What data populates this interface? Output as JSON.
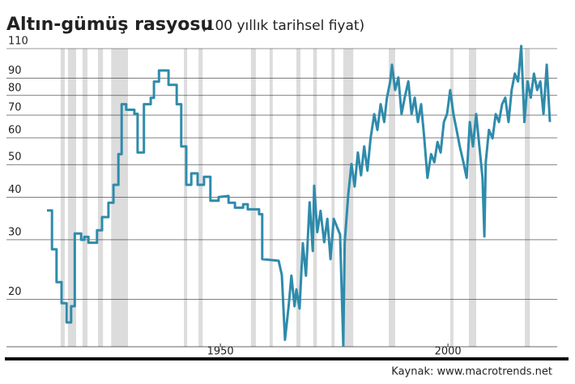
{
  "chart_data": {
    "type": "line",
    "title": "Altın-gümüş rasyosu",
    "subtitle": "(100 yıllık tarihsel fiyat)",
    "source": "Kaynak: www.macrotrends.net",
    "color": "#2f8bab",
    "band_color": "#dcdcdc",
    "yscale": "log",
    "grid": true,
    "xlim": [
      1903,
      2024
    ],
    "ylim": [
      14.5,
      110
    ],
    "xticks": [
      1950,
      2000
    ],
    "yticks": [
      20,
      30,
      40,
      50,
      60,
      70,
      80,
      90,
      110
    ],
    "shaded_ranges": [
      [
        1914.9,
        1915.8
      ],
      [
        1916.5,
        1918.3
      ],
      [
        1919.7,
        1920.8
      ],
      [
        1923.1,
        1924.2
      ],
      [
        1926.0,
        1929.7
      ],
      [
        1942.0,
        1942.7
      ],
      [
        1945.2,
        1946.1
      ],
      [
        1956.7,
        1957.8
      ],
      [
        1960.8,
        1961.5
      ],
      [
        1966.7,
        1967.6
      ],
      [
        1970.4,
        1971.2
      ],
      [
        1974.4,
        1975.1
      ],
      [
        1977.0,
        1979.2
      ],
      [
        1987.0,
        1988.4
      ],
      [
        2000.5,
        2001.2
      ],
      [
        2004.6,
        2006.2
      ],
      [
        2016.9,
        2018.0
      ]
    ],
    "x": [
      1911.9,
      1913,
      1913,
      1914,
      1914,
      1915.1,
      1915.1,
      1916.2,
      1916.2,
      1917.2,
      1917.2,
      1918,
      1918,
      1919.4,
      1919.4,
      1920.1,
      1920.1,
      1921,
      1921,
      1922.9,
      1922.9,
      1924,
      1924,
      1925.4,
      1925.4,
      1926.5,
      1926.5,
      1927.6,
      1927.6,
      1928.3,
      1928.3,
      1929.3,
      1929.3,
      1931.1,
      1931.1,
      1931.8,
      1931.8,
      1933.2,
      1933.2,
      1934.7,
      1934.7,
      1935.4,
      1935.4,
      1936.5,
      1936.5,
      1938.6,
      1938.6,
      1940.4,
      1940.4,
      1941.4,
      1941.4,
      1942.5,
      1942.5,
      1943.6,
      1943.6,
      1945,
      1945,
      1946.4,
      1946.4,
      1947.8,
      1947.8,
      1949.6,
      1949.6,
      1951.8,
      1951.8,
      1953.2,
      1953.2,
      1955,
      1955,
      1956,
      1956,
      1958.5,
      1958.5,
      1959.2,
      1959.2,
      1962.8,
      1963.5,
      1964.2,
      1965,
      1965.6,
      1966.3,
      1966.7,
      1967.4,
      1968.1,
      1968.8,
      1969.6,
      1970.3,
      1970.6,
      1971.3,
      1972,
      1972.8,
      1973.5,
      1974.2,
      1974.9,
      1975.6,
      1976.3,
      1977,
      1977.3,
      1978.1,
      1978.8,
      1979.5,
      1980.2,
      1980.9,
      1981.6,
      1982.3,
      1983,
      1983.8,
      1984.5,
      1985.2,
      1986,
      1986.6,
      1987.3,
      1987.7,
      1988.4,
      1989.1,
      1989.8,
      1990.5,
      1991.3,
      1992,
      1992.7,
      1993.4,
      1994.1,
      1994.8,
      1995.5,
      1996.3,
      1997,
      1997.7,
      1998.4,
      1999.1,
      1999.8,
      2000.5,
      2001.2,
      2001.9,
      2002.6,
      2003.4,
      2004.1,
      2004.8,
      2005.5,
      2006.2,
      2006.9,
      2007.6,
      2008,
      2008.3,
      2009,
      2009.8,
      2010.5,
      2011.2,
      2011.9,
      2012.6,
      2013.3,
      2014,
      2014.7,
      2015.4,
      2016.1,
      2016.8,
      2017.5,
      2018.2,
      2018.9,
      2019.6,
      2020.3,
      2021,
      2021.7,
      2022.4
    ],
    "values": [
      36.6,
      36.6,
      28.1,
      28.1,
      22.5,
      22.5,
      19.5,
      19.5,
      17.1,
      17.1,
      19.1,
      19.1,
      31.3,
      31.3,
      30,
      30,
      30.6,
      30.6,
      29.4,
      29.4,
      32,
      32,
      35,
      35,
      38.6,
      38.6,
      43.6,
      43.6,
      53.7,
      53.7,
      75.4,
      75.4,
      72.6,
      72.6,
      70.6,
      70.6,
      54.3,
      54.3,
      75.4,
      75.4,
      78.7,
      78.7,
      87.9,
      87.9,
      94.8,
      94.8,
      86,
      86,
      75.4,
      75.4,
      56.6,
      56.6,
      43.6,
      43.6,
      47.1,
      47.1,
      43.6,
      43.6,
      46,
      46,
      39.1,
      39.1,
      40.1,
      40.4,
      38.6,
      38.6,
      37.3,
      37.3,
      38.2,
      38.2,
      36.9,
      36.9,
      35.7,
      35.7,
      26.3,
      26,
      23.6,
      15.2,
      19.1,
      23.5,
      19.1,
      21.4,
      18.8,
      29.3,
      23.5,
      38.7,
      27.8,
      43.3,
      31.6,
      36.5,
      29.5,
      34.6,
      26.3,
      34.6,
      32.8,
      31.1,
      14.6,
      29.3,
      40.8,
      50.2,
      43.1,
      54.3,
      46.5,
      56.6,
      48,
      59.8,
      70.5,
      63.3,
      75.4,
      66.8,
      78.8,
      88,
      98.6,
      83,
      90.4,
      70.5,
      78.8,
      88,
      70.5,
      78.8,
      66.8,
      75.4,
      59.8,
      45.7,
      53.7,
      50.8,
      58.3,
      54.3,
      66.8,
      70.5,
      83,
      70.5,
      63.3,
      56.6,
      50.8,
      45.7,
      66.8,
      56.6,
      70.5,
      56.6,
      45.7,
      30.7,
      50.8,
      63.3,
      59.8,
      70.5,
      66.8,
      75.4,
      78.8,
      66.8,
      83,
      92.8,
      88,
      112,
      66.8,
      88,
      78.8,
      92.8,
      83,
      88,
      70.5,
      98.6,
      66.8
    ]
  }
}
